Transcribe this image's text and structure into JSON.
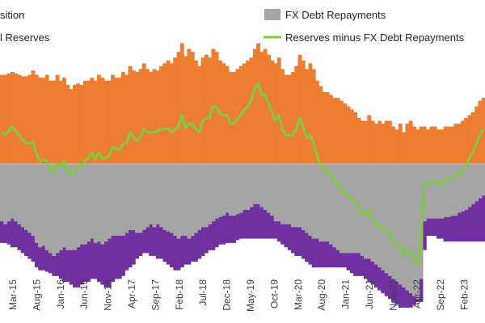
{
  "chart_data": {
    "type": "bar",
    "x_tick_labels": [
      "Mar-15",
      "Aug-15",
      "Jan-16",
      "Jun-16",
      "Nov-16",
      "Apr-17",
      "Sep-17",
      "Feb-18",
      "Jul-18",
      "Dec-18",
      "May-19",
      "Oct-19",
      "Mar-20",
      "Aug-20",
      "Jan-21",
      "Jun-21",
      "Nov-21",
      "Apr-22",
      "Sep-22",
      "Feb-23"
    ],
    "legend": [
      {
        "label": "sition",
        "kind": "purple-box"
      },
      {
        "label": "FX Debt Repayments",
        "kind": "gray-box"
      },
      {
        "label": "l Reserves",
        "kind": "orange-box"
      },
      {
        "label": "Reserves minus FX Debt Repayments",
        "kind": "green-line"
      }
    ],
    "y_axis_range": [
      -100,
      100
    ],
    "colors": {
      "reserves": "#ED7D31",
      "debt": "#A5A5A5",
      "position": "#7030A0",
      "net_line": "#7DCC3E"
    },
    "series": [
      {
        "name": "Reserves",
        "values": [
          62,
          62,
          63,
          64,
          63,
          62,
          61,
          61,
          62,
          65,
          62,
          60,
          60,
          62,
          58,
          58,
          62,
          58,
          60,
          55,
          52,
          55,
          56,
          55,
          58,
          58,
          60,
          58,
          62,
          60,
          58,
          58,
          62,
          60,
          60,
          64,
          62,
          68,
          65,
          64,
          66,
          70,
          66,
          64,
          66,
          65,
          68,
          70,
          72,
          70,
          74,
          78,
          84,
          75,
          80,
          78,
          72,
          68,
          74,
          76,
          74,
          80,
          78,
          72,
          70,
          68,
          64,
          64,
          66,
          68,
          70,
          72,
          74,
          80,
          84,
          78,
          80,
          76,
          72,
          70,
          74,
          66,
          62,
          62,
          64,
          68,
          76,
          72,
          66,
          70,
          66,
          58,
          54,
          50,
          50,
          48,
          46,
          46,
          44,
          42,
          40,
          38,
          36,
          32,
          30,
          30,
          34,
          30,
          28,
          30,
          28,
          30,
          30,
          26,
          24,
          28,
          22,
          28,
          30,
          26,
          24,
          26,
          26,
          24,
          26,
          26,
          24,
          24,
          26,
          26,
          26,
          28,
          28,
          30,
          32,
          34,
          36,
          40,
          44,
          46
        ]
      },
      {
        "name": "FX Debt Repayments",
        "values": [
          -40,
          -42,
          -40,
          -38,
          -40,
          -42,
          -44,
          -46,
          -48,
          -50,
          -55,
          -58,
          -57,
          -60,
          -62,
          -64,
          -62,
          -60,
          -58,
          -60,
          -60,
          -60,
          -58,
          -56,
          -56,
          -54,
          -52,
          -55,
          -54,
          -56,
          -54,
          -52,
          -50,
          -50,
          -50,
          -50,
          -48,
          -46,
          -46,
          -48,
          -48,
          -46,
          -44,
          -42,
          -44,
          -42,
          -44,
          -46,
          -47,
          -48,
          -50,
          -52,
          -50,
          -50,
          -52,
          -50,
          -48,
          -46,
          -44,
          -44,
          -42,
          -40,
          -38,
          -37,
          -36,
          -34,
          -36,
          -36,
          -35,
          -34,
          -32,
          -32,
          -30,
          -28,
          -28,
          -30,
          -32,
          -34,
          -36,
          -40,
          -40,
          -42,
          -42,
          -42,
          -44,
          -44,
          -44,
          -46,
          -48,
          -50,
          -52,
          -52,
          -54,
          -54,
          -54,
          -56,
          -58,
          -60,
          -62,
          -62,
          -62,
          -62,
          -62,
          -62,
          -64,
          -66,
          -66,
          -68,
          -70,
          -72,
          -74,
          -76,
          -78,
          -80,
          -82,
          -84,
          -86,
          -88,
          -90,
          -92,
          -94,
          -80,
          -40,
          -38,
          -38,
          -38,
          -38,
          -38,
          -37,
          -37,
          -36,
          -36,
          -34,
          -33,
          -32,
          -30,
          -28,
          -26,
          -24,
          -22
        ]
      },
      {
        "name": "Net Position",
        "values": [
          -55,
          -55,
          -56,
          -58,
          -58,
          -60,
          -62,
          -64,
          -66,
          -68,
          -72,
          -74,
          -74,
          -75,
          -76,
          -78,
          -78,
          -80,
          -82,
          -82,
          -84,
          -86,
          -86,
          -84,
          -82,
          -82,
          -80,
          -80,
          -82,
          -84,
          -86,
          -86,
          -82,
          -80,
          -80,
          -78,
          -74,
          -72,
          -70,
          -66,
          -64,
          -62,
          -62,
          -64,
          -64,
          -66,
          -66,
          -68,
          -70,
          -72,
          -74,
          -74,
          -72,
          -70,
          -70,
          -68,
          -68,
          -66,
          -64,
          -62,
          -60,
          -60,
          -58,
          -56,
          -56,
          -55,
          -55,
          -55,
          -53,
          -52,
          -52,
          -52,
          -52,
          -52,
          -52,
          -52,
          -52,
          -52,
          -52,
          -52,
          -54,
          -56,
          -58,
          -60,
          -62,
          -64,
          -64,
          -66,
          -68,
          -70,
          -72,
          -72,
          -72,
          -72,
          -72,
          -72,
          -72,
          -72,
          -72,
          -72,
          -74,
          -76,
          -78,
          -78,
          -78,
          -80,
          -82,
          -84,
          -86,
          -88,
          -90,
          -92,
          -94,
          -96,
          -98,
          -100,
          -100,
          -100,
          -100,
          -98,
          -96,
          -96,
          -60,
          -50,
          -50,
          -50,
          -52,
          -52,
          -54,
          -54,
          -54,
          -54,
          -54,
          -54,
          -54,
          -54,
          -54,
          -54,
          -54,
          -54
        ]
      },
      {
        "name": "Reserves minus FX Debt Repayments",
        "values": [
          22,
          20,
          23,
          26,
          23,
          20,
          17,
          15,
          14,
          15,
          7,
          2,
          3,
          2,
          -4,
          -6,
          0,
          -2,
          2,
          -5,
          -8,
          -5,
          -2,
          -1,
          2,
          4,
          8,
          3,
          8,
          4,
          4,
          6,
          12,
          10,
          10,
          14,
          14,
          22,
          19,
          16,
          18,
          24,
          22,
          22,
          22,
          23,
          24,
          24,
          25,
          22,
          24,
          26,
          34,
          25,
          28,
          28,
          24,
          22,
          30,
          32,
          32,
          40,
          40,
          35,
          34,
          34,
          28,
          28,
          31,
          34,
          38,
          40,
          44,
          52,
          56,
          48,
          48,
          42,
          36,
          30,
          34,
          24,
          20,
          20,
          20,
          24,
          32,
          26,
          18,
          20,
          14,
          6,
          0,
          -4,
          -4,
          -8,
          -12,
          -14,
          -18,
          -20,
          -22,
          -24,
          -26,
          -30,
          -34,
          -36,
          -32,
          -38,
          -42,
          -42,
          -46,
          -46,
          -48,
          -54,
          -58,
          -56,
          -64,
          -60,
          -60,
          -66,
          -70,
          -54,
          -14,
          -14,
          -12,
          -12,
          -14,
          -14,
          -11,
          -11,
          -10,
          -8,
          -8,
          -4,
          -2,
          4,
          8,
          14,
          20,
          24
        ]
      }
    ]
  }
}
